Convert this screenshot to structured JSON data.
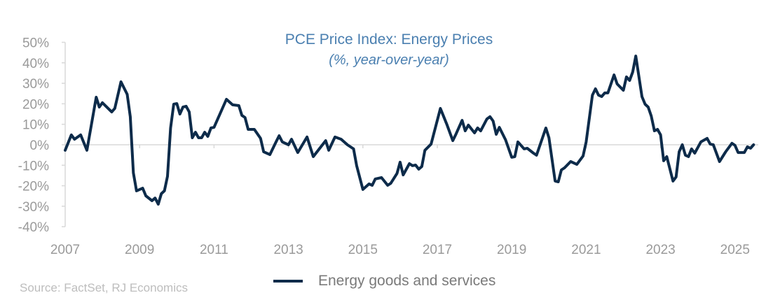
{
  "chart_data": {
    "type": "line",
    "title": "PCE Price Index: Energy Prices",
    "subtitle": "(%, year-over-year)",
    "xlabel": "",
    "ylabel": "",
    "ylim": [
      -40,
      50
    ],
    "y_ticks": [
      "50%",
      "40%",
      "30%",
      "20%",
      "10%",
      "0%",
      "-10%",
      "-20%",
      "-30%",
      "-40%"
    ],
    "y_tick_values": [
      50,
      40,
      30,
      20,
      10,
      0,
      -10,
      -20,
      -30,
      -40
    ],
    "x_ticks": [
      "2007",
      "2009",
      "2011",
      "2013",
      "2015",
      "2017",
      "2019",
      "2021",
      "2023",
      "2025"
    ],
    "grid": false,
    "legend_position": "bottom",
    "line_color": "#0d2b4a",
    "series": [
      {
        "name": "Energy goods and services",
        "x": [
          "2007-01",
          "2007-03",
          "2007-04",
          "2007-06",
          "2007-08",
          "2007-11",
          "2007-12",
          "2008-01",
          "2008-04",
          "2008-05",
          "2008-07",
          "2008-09",
          "2008-10",
          "2008-11",
          "2008-12",
          "2009-02",
          "2009-03",
          "2009-05",
          "2009-06",
          "2009-07",
          "2009-08",
          "2009-09",
          "2009-10",
          "2009-11",
          "2009-12",
          "2010-01",
          "2010-02",
          "2010-03",
          "2010-04",
          "2010-05",
          "2010-06",
          "2010-07",
          "2010-08",
          "2010-09",
          "2010-10",
          "2010-11",
          "2010-12",
          "2011-01",
          "2011-05",
          "2011-07",
          "2011-09",
          "2011-10",
          "2011-11",
          "2011-12",
          "2012-02",
          "2012-04",
          "2012-05",
          "2012-07",
          "2012-09",
          "2012-10",
          "2012-11",
          "2013-01",
          "2013-02",
          "2013-04",
          "2013-07",
          "2013-09",
          "2014-01",
          "2014-02",
          "2014-04",
          "2014-06",
          "2014-08",
          "2014-10",
          "2014-11",
          "2015-01",
          "2015-03",
          "2015-04",
          "2015-05",
          "2015-07",
          "2015-09",
          "2015-10",
          "2015-12",
          "2016-01",
          "2016-02",
          "2016-04",
          "2016-05",
          "2016-06",
          "2016-07",
          "2016-08",
          "2016-09",
          "2016-11",
          "2017-02",
          "2017-04",
          "2017-06",
          "2017-07",
          "2017-09",
          "2017-10",
          "2017-11",
          "2018-01",
          "2018-02",
          "2018-03",
          "2018-05",
          "2018-06",
          "2018-07",
          "2018-08",
          "2018-09",
          "2018-11",
          "2019-01",
          "2019-02",
          "2019-03",
          "2019-05",
          "2019-06",
          "2019-08",
          "2019-09",
          "2019-12",
          "2020-01",
          "2020-03",
          "2020-04",
          "2020-05",
          "2020-06",
          "2020-08",
          "2020-10",
          "2020-12",
          "2021-01",
          "2021-03",
          "2021-04",
          "2021-05",
          "2021-06",
          "2021-07",
          "2021-08",
          "2021-10",
          "2021-11",
          "2022-01",
          "2022-02",
          "2022-03",
          "2022-04",
          "2022-05",
          "2022-07",
          "2022-08",
          "2022-09",
          "2022-10",
          "2022-11",
          "2022-12",
          "2023-01",
          "2023-02",
          "2023-03",
          "2023-05",
          "2023-06",
          "2023-07",
          "2023-08",
          "2023-09",
          "2023-10",
          "2023-11",
          "2023-12",
          "2024-02",
          "2024-04",
          "2024-05",
          "2024-06",
          "2024-08",
          "2024-10",
          "2024-12",
          "2025-01",
          "2025-02",
          "2025-04",
          "2025-05",
          "2025-06",
          "2025-07"
        ],
        "values": [
          -2.7,
          4.8,
          2.7,
          4.8,
          -2.7,
          23.2,
          18.4,
          20.5,
          16,
          17.7,
          30.7,
          24.6,
          13.7,
          -13.7,
          -22.5,
          -21.2,
          -24.9,
          -27.3,
          -26,
          -29,
          -23.9,
          -22.5,
          -15.4,
          8.2,
          19.8,
          20.1,
          15,
          18.4,
          18.8,
          16,
          3.4,
          6.1,
          3.4,
          3.4,
          6.1,
          4.1,
          8.2,
          8.5,
          22.2,
          19.5,
          19.1,
          14.3,
          13.3,
          7.5,
          7.5,
          3.1,
          -3.4,
          -4.8,
          1.4,
          4.4,
          1.4,
          0,
          2.7,
          -3.8,
          3.8,
          -5.8,
          2,
          -2.7,
          3.8,
          2.7,
          0,
          -2,
          -10.2,
          -21.8,
          -19.1,
          -19.8,
          -16.7,
          -16,
          -19.8,
          -18.8,
          -14,
          -8.5,
          -14.7,
          -9.2,
          -10.2,
          -9.9,
          -11.9,
          -10.6,
          -2.7,
          0.3,
          17.7,
          10.2,
          2,
          5.1,
          11.9,
          6.8,
          9.6,
          5.8,
          8.2,
          6.8,
          12.6,
          13.7,
          11.6,
          5.1,
          8.5,
          2.4,
          -6.1,
          -5.8,
          1.4,
          -2,
          -1.7,
          -4.1,
          -5.1,
          8.2,
          3.4,
          -17.7,
          -18.1,
          -12.3,
          -11.3,
          -8.2,
          -9.6,
          -5.5,
          1.4,
          24.2,
          27.3,
          24.2,
          23.5,
          25.3,
          25.3,
          34.1,
          29.7,
          26.6,
          33.1,
          31.4,
          35.5,
          43.3,
          23.5,
          19.8,
          18.4,
          14,
          6.8,
          7.5,
          4.8,
          -7.8,
          -5.8,
          -17.7,
          -15.7,
          -3.4,
          0,
          -5.1,
          -5.8,
          -2,
          -4.1,
          1.4,
          3.1,
          0.3,
          0,
          -8.2,
          -3.4,
          0.7,
          -0.3,
          -3.8,
          -3.8,
          -1,
          -1.7,
          0
        ]
      }
    ]
  },
  "source": "Source: FactSet, RJ Economics"
}
